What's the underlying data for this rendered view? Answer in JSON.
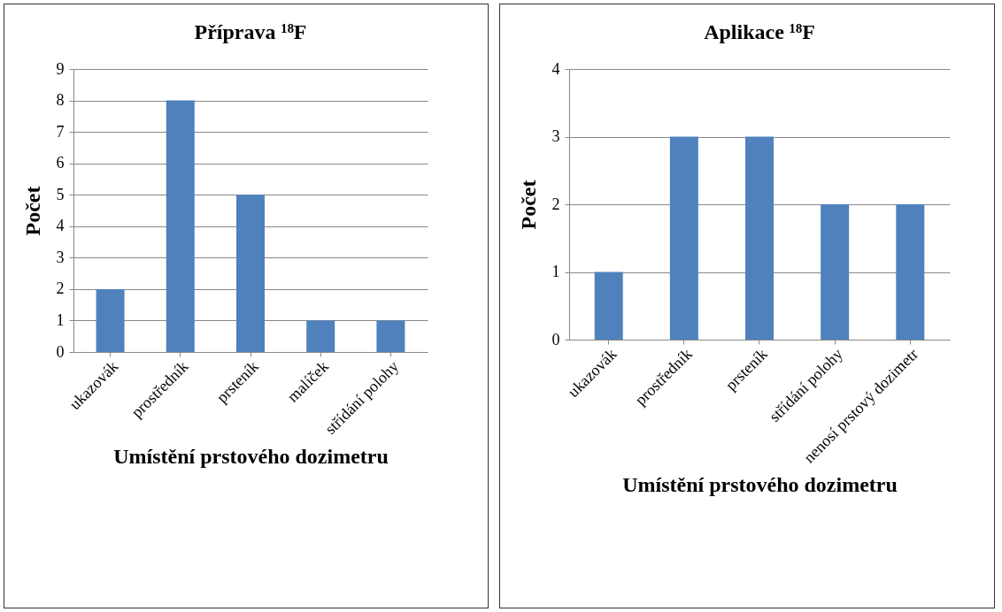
{
  "chart_data": [
    {
      "type": "bar",
      "title": "Příprava ¹⁸F",
      "xlabel": "Umístění prstového dozimetru",
      "ylabel": "Počet",
      "categories": [
        "ukazovák",
        "prostředník",
        "prsteník",
        "malíček",
        "střídání polohy"
      ],
      "values": [
        2,
        8,
        5,
        1,
        1
      ],
      "color": "#4f81bd",
      "ylim": [
        0,
        9
      ],
      "yticks": [
        0,
        1,
        2,
        3,
        4,
        5,
        6,
        7,
        8,
        9
      ],
      "grid": "y"
    },
    {
      "type": "bar",
      "title": "Aplikace ¹⁸F",
      "xlabel": "Umístění prstového dozimetru",
      "ylabel": "Počet",
      "categories": [
        "ukazovák",
        "prostředník",
        "prsteník",
        "střídání polohy",
        "nenosí prstový dozimetr"
      ],
      "values": [
        1,
        3,
        3,
        2,
        2
      ],
      "color": "#4f81bd",
      "ylim": [
        0,
        4
      ],
      "yticks": [
        0,
        1,
        2,
        3,
        4
      ],
      "grid": "y"
    }
  ]
}
